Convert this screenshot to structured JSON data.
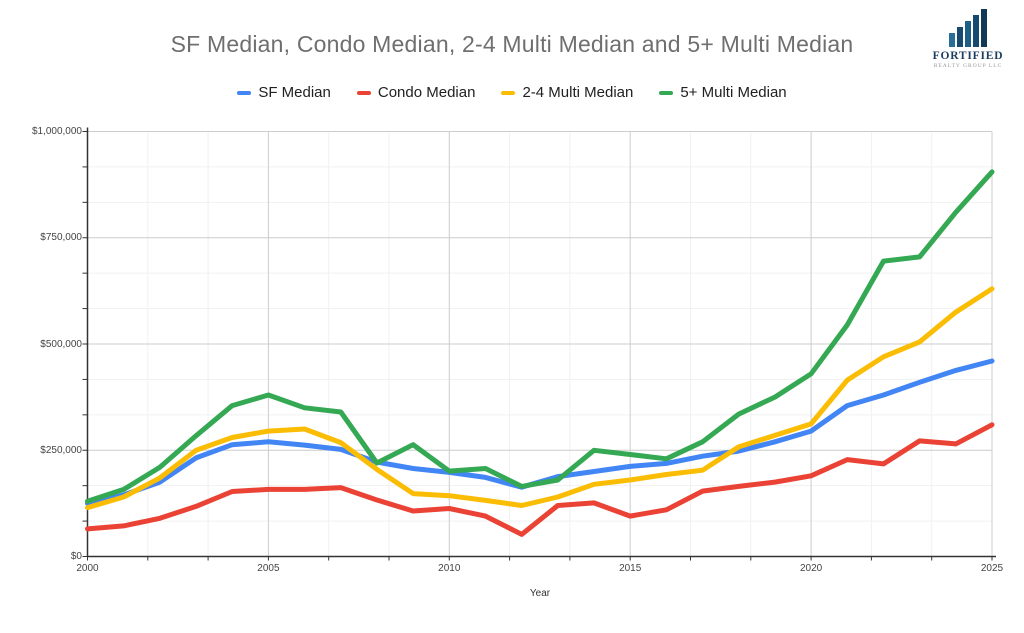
{
  "header": {
    "title": "SF Median, Condo Median, 2-4 Multi Median and 5+ Multi Median",
    "logo": {
      "name": "FORTIFIED",
      "subtitle": "REALTY GROUP LLC",
      "icon": "building-bars-icon"
    }
  },
  "legend": {
    "items": [
      {
        "label": "SF Median",
        "color": "#4285F4"
      },
      {
        "label": "Condo Median",
        "color": "#EA4335"
      },
      {
        "label": "2-4 Multi Median",
        "color": "#FBBC04"
      },
      {
        "label": "5+ Multi Median",
        "color": "#34A853"
      }
    ]
  },
  "chart_data": {
    "type": "line",
    "title": "SF Median, Condo Median, 2-4 Multi Median and 5+ Multi Median",
    "xlabel": "Year",
    "ylabel": "",
    "grid": true,
    "legend_position": "top",
    "x_range": [
      2000,
      2025
    ],
    "y_range": [
      0,
      1000000
    ],
    "x_ticks": [
      2000,
      2005,
      2010,
      2015,
      2020,
      2025
    ],
    "x_tick_labels": [
      "2000",
      "2005",
      "2010",
      "2015",
      "2020",
      "2025"
    ],
    "y_ticks": [
      0,
      250000,
      500000,
      750000,
      1000000
    ],
    "y_tick_labels": [
      "$0",
      "$250,000",
      "$500,000",
      "$750,000",
      "$1,000,000"
    ],
    "minor_divisions": 3,
    "x": [
      2000,
      2001,
      2002,
      2003,
      2004,
      2005,
      2006,
      2007,
      2008,
      2009,
      2010,
      2011,
      2012,
      2013,
      2014,
      2015,
      2016,
      2017,
      2018,
      2019,
      2020,
      2021,
      2022,
      2023,
      2024,
      2025
    ],
    "series": [
      {
        "name": "SF Median",
        "color": "#4285F4",
        "values": [
          125000,
          145000,
          175000,
          232000,
          263000,
          270000,
          262000,
          252000,
          222000,
          207000,
          198000,
          186000,
          163000,
          188000,
          200000,
          212000,
          219000,
          236000,
          248000,
          270000,
          295000,
          355000,
          380000,
          410000,
          438000,
          460000
        ]
      },
      {
        "name": "Condo Median",
        "color": "#EA4335",
        "values": [
          65000,
          72000,
          90000,
          118000,
          153000,
          158000,
          158000,
          162000,
          133000,
          107000,
          113000,
          95000,
          52000,
          120000,
          126000,
          95000,
          110000,
          154000,
          165000,
          175000,
          190000,
          228000,
          218000,
          272000,
          265000,
          310000
        ]
      },
      {
        "name": "2-4 Multi Median",
        "color": "#FBBC04",
        "values": [
          115000,
          140000,
          185000,
          250000,
          280000,
          295000,
          300000,
          268000,
          205000,
          148000,
          143000,
          132000,
          120000,
          140000,
          170000,
          180000,
          193000,
          203000,
          258000,
          285000,
          312000,
          415000,
          470000,
          505000,
          575000,
          630000
        ]
      },
      {
        "name": "5+ Multi Median",
        "color": "#34A853",
        "values": [
          130000,
          158000,
          210000,
          284000,
          355000,
          380000,
          350000,
          340000,
          220000,
          263000,
          201000,
          207000,
          165000,
          180000,
          250000,
          240000,
          230000,
          270000,
          335000,
          375000,
          430000,
          545000,
          695000,
          705000,
          810000,
          905000
        ]
      }
    ]
  }
}
